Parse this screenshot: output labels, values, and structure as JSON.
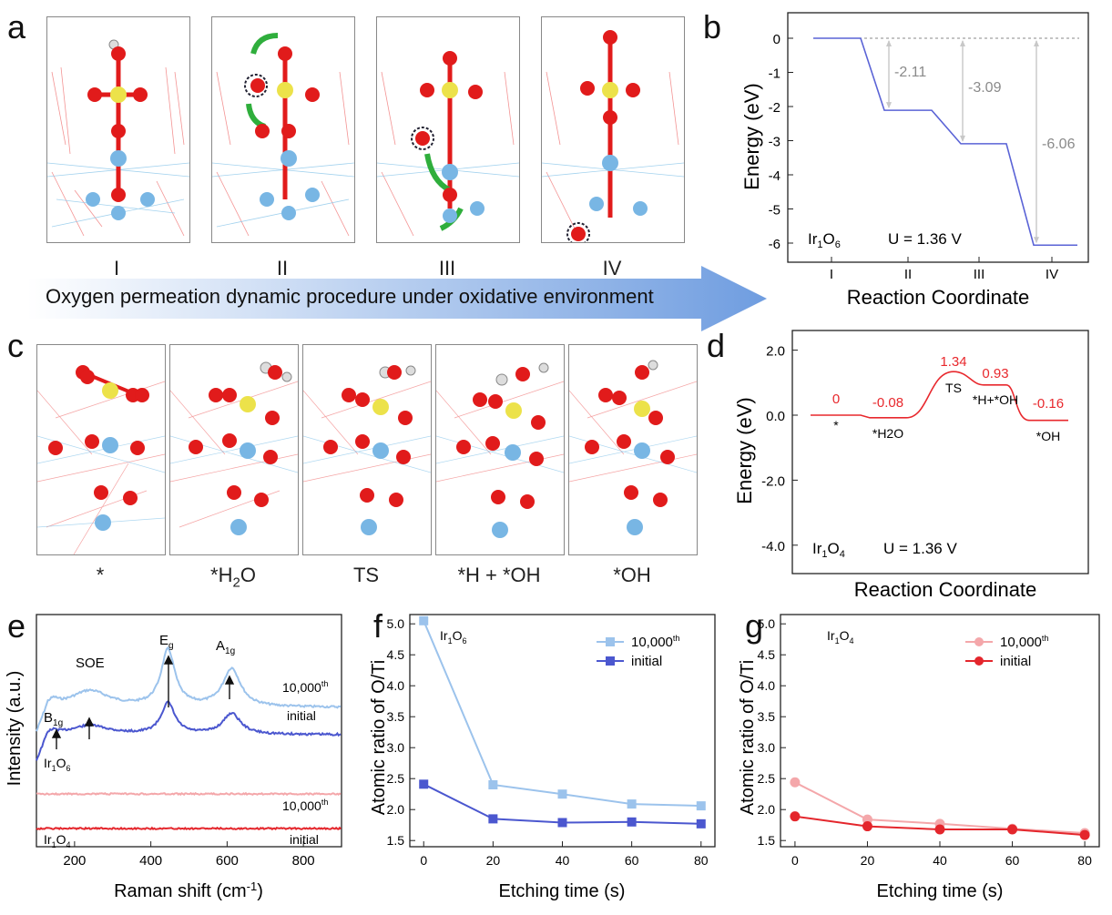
{
  "panels": {
    "a": {
      "letter": "a",
      "stages": [
        "I",
        "II",
        "III",
        "IV"
      ],
      "arrow_caption": "Oxygen permeation dynamic procedure under oxidative environment"
    },
    "b": {
      "letter": "b",
      "ylabel": "Energy (eV)",
      "xlabel": "Reaction Coordinate",
      "system": "Ir1O6",
      "potential": "U = 1.36 V",
      "ticks_y": [
        "0",
        "-1",
        "-2",
        "-3",
        "-4",
        "-5",
        "-6"
      ],
      "ticks_x": [
        "I",
        "II",
        "III",
        "IV"
      ],
      "annotations": [
        "-2.11",
        "-3.09",
        "-6.06"
      ]
    },
    "c": {
      "letter": "c",
      "states": [
        "*",
        "*H2O",
        "TS",
        "*H + *OH",
        "*OH"
      ]
    },
    "d": {
      "letter": "d",
      "ylabel": "Energy (eV)",
      "xlabel": "Reaction Coordinate",
      "system": "Ir1O4",
      "potential": "U = 1.36 V",
      "ticks_y": [
        "2.0",
        "0.0",
        "-2.0",
        "-4.0"
      ],
      "value_labels": [
        "0",
        "-0.08",
        "1.34",
        "0.93",
        "-0.16"
      ],
      "state_labels": [
        "*",
        "*H2O",
        "TS",
        "*H+*OH",
        "*OH"
      ]
    },
    "e": {
      "letter": "e",
      "ylabel": "Intensity (a.u.)",
      "xlabel": "Raman shift (cm-1)",
      "ticks_x": [
        "200",
        "400",
        "600",
        "800"
      ],
      "peaks": [
        "B1g",
        "SOE",
        "Eg",
        "A1g"
      ],
      "series_labels": [
        "10,000th",
        "initial",
        "Ir1O6",
        "10,000th",
        "initial",
        "Ir1O4"
      ]
    },
    "f": {
      "letter": "f",
      "ylabel": "Atomic ratio of O/Ti",
      "xlabel": "Etching time (s)",
      "system": "Ir1O6",
      "legend": [
        "10,000th",
        "initial"
      ]
    },
    "g": {
      "letter": "g",
      "ylabel": "Atomic ratio of O/Ti",
      "xlabel": "Etching time (s)",
      "system": "Ir1O4",
      "legend": [
        "10,000th",
        "initial"
      ]
    }
  },
  "colors": {
    "ir1o6_light": "#9cc3ec",
    "ir1o6_dark": "#4b57cf",
    "ir1o4_light": "#f4a7aa",
    "ir1o4_dark": "#e4262c",
    "energy_b": "#5a63d6",
    "energy_d": "#e8282d",
    "oxygen": "#e11b1b",
    "titanium": "#78b6e4",
    "iridium": "#ece24a"
  },
  "chart_data": [
    {
      "panel": "b",
      "type": "line",
      "title": "",
      "xlabel": "Reaction Coordinate",
      "ylabel": "Energy (eV)",
      "categories": [
        "I",
        "II",
        "III",
        "IV"
      ],
      "series": [
        {
          "name": "Ir1O6",
          "values": [
            0,
            -2.11,
            -3.09,
            -6.06
          ]
        }
      ],
      "ylim": [
        -6.5,
        0.5
      ]
    },
    {
      "panel": "d",
      "type": "line",
      "title": "",
      "xlabel": "Reaction Coordinate",
      "ylabel": "Energy (eV)",
      "categories": [
        "*",
        "*H2O",
        "TS",
        "*H+*OH",
        "*OH"
      ],
      "series": [
        {
          "name": "Ir1O4",
          "values": [
            0,
            -0.08,
            1.34,
            0.93,
            -0.16
          ]
        }
      ],
      "ylim": [
        -4.8,
        2.4
      ]
    },
    {
      "panel": "f",
      "type": "line",
      "title": "",
      "xlabel": "Etching time (s)",
      "ylabel": "Atomic ratio of O/Ti",
      "x": [
        0,
        20,
        40,
        60,
        80
      ],
      "series": [
        {
          "name": "10,000th",
          "values": [
            5.05,
            2.4,
            2.25,
            2.09,
            2.06
          ]
        },
        {
          "name": "initial",
          "values": [
            2.41,
            1.85,
            1.79,
            1.8,
            1.77
          ]
        }
      ],
      "xlim": [
        -4,
        84
      ],
      "ylim": [
        1.4,
        5.15
      ],
      "yticks": [
        1.5,
        2.0,
        2.5,
        3.0,
        3.5,
        4.0,
        4.5,
        5.0
      ]
    },
    {
      "panel": "g",
      "type": "line",
      "title": "",
      "xlabel": "Etching time (s)",
      "ylabel": "Atomic ratio of O/Ti",
      "x": [
        0,
        20,
        40,
        60,
        80
      ],
      "series": [
        {
          "name": "10,000th",
          "values": [
            2.44,
            1.84,
            1.77,
            1.69,
            1.62
          ]
        },
        {
          "name": "initial",
          "values": [
            1.89,
            1.73,
            1.68,
            1.68,
            1.59
          ]
        }
      ],
      "xlim": [
        -4,
        84
      ],
      "ylim": [
        1.4,
        5.15
      ],
      "yticks": [
        1.5,
        2.0,
        2.5,
        3.0,
        3.5,
        4.0,
        4.5,
        5.0
      ]
    }
  ]
}
